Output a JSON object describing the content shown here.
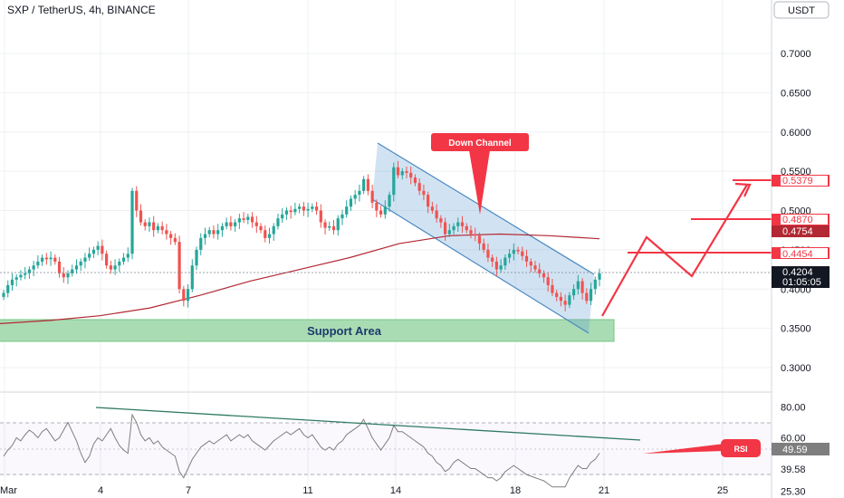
{
  "header": {
    "title": "SXP / TetherUS, 4h, BINANCE",
    "currency_button": "USDT"
  },
  "colors": {
    "up": "#26a69a",
    "down": "#ef5350",
    "ma": "#b22833",
    "channel": "#5b9bd5",
    "support": "#9fd8a8",
    "annotation": "#f23645",
    "rsi": "#7e7e7e",
    "trend": "#2f7a62"
  },
  "chart_data": [
    {
      "type": "candlestick",
      "title": "SXP / TetherUS, 4h, BINANCE",
      "ylim": [
        0.26,
        0.76
      ],
      "price_ticks": [
        "0.7000",
        "0.6500",
        "0.6000",
        "0.5500",
        "0.5000",
        "0.4500",
        "0.4000",
        "0.3500",
        "0.3000"
      ],
      "date_ticks": [
        "Mar",
        "4",
        "7",
        "11",
        "14",
        "18",
        "21",
        "25"
      ],
      "close_prices": [
        0.395,
        0.405,
        0.412,
        0.415,
        0.418,
        0.42,
        0.425,
        0.43,
        0.435,
        0.44,
        0.438,
        0.44,
        0.435,
        0.42,
        0.415,
        0.42,
        0.425,
        0.43,
        0.435,
        0.44,
        0.445,
        0.45,
        0.455,
        0.445,
        0.43,
        0.425,
        0.43,
        0.435,
        0.44,
        0.445,
        0.525,
        0.5,
        0.485,
        0.48,
        0.485,
        0.475,
        0.48,
        0.475,
        0.47,
        0.465,
        0.46,
        0.4,
        0.385,
        0.4,
        0.43,
        0.45,
        0.465,
        0.47,
        0.475,
        0.47,
        0.475,
        0.48,
        0.485,
        0.48,
        0.485,
        0.49,
        0.488,
        0.492,
        0.485,
        0.48,
        0.475,
        0.465,
        0.47,
        0.48,
        0.49,
        0.495,
        0.5,
        0.498,
        0.502,
        0.505,
        0.5,
        0.502,
        0.505,
        0.5,
        0.485,
        0.478,
        0.48,
        0.475,
        0.49,
        0.495,
        0.505,
        0.515,
        0.52,
        0.525,
        0.54,
        0.525,
        0.51,
        0.5,
        0.495,
        0.505,
        0.52,
        0.555,
        0.545,
        0.55,
        0.548,
        0.542,
        0.535,
        0.525,
        0.52,
        0.505,
        0.5,
        0.49,
        0.485,
        0.47,
        0.475,
        0.48,
        0.485,
        0.48,
        0.475,
        0.47,
        0.468,
        0.458,
        0.45,
        0.44,
        0.435,
        0.425,
        0.43,
        0.44,
        0.445,
        0.45,
        0.448,
        0.442,
        0.435,
        0.43,
        0.425,
        0.42,
        0.415,
        0.405,
        0.395,
        0.39,
        0.385,
        0.38,
        0.392,
        0.4,
        0.41,
        0.395,
        0.385,
        0.4,
        0.412,
        0.42
      ],
      "moving_average": {
        "values": [
          0.356,
          0.36,
          0.366,
          0.376,
          0.392,
          0.41,
          0.425,
          0.44,
          0.458,
          0.468,
          0.47,
          0.468,
          0.464
        ],
        "color": "#b22833"
      },
      "down_channel_label": "Down Channel",
      "support_label": "Support Area",
      "target_levels": [
        "0.5379",
        "0.4870",
        "0.4754",
        "0.4454"
      ],
      "current_price": "0.4204",
      "countdown": "01:05:05",
      "projected_path": [
        0.372,
        0.465,
        0.415,
        0.537
      ]
    },
    {
      "type": "line",
      "title": "RSI",
      "ylim": [
        22,
        88
      ],
      "rsi_ticks": [
        "80.00",
        "60.00",
        "39.58",
        "25.30"
      ],
      "current_value": "49.59",
      "values": [
        48,
        52,
        55,
        60,
        58,
        62,
        65,
        63,
        60,
        64,
        66,
        62,
        58,
        60,
        65,
        70,
        64,
        58,
        50,
        44,
        48,
        56,
        60,
        58,
        62,
        66,
        60,
        55,
        52,
        50,
        75,
        70,
        62,
        58,
        60,
        56,
        58,
        54,
        52,
        50,
        48,
        38,
        34,
        40,
        46,
        50,
        54,
        56,
        58,
        56,
        58,
        60,
        62,
        58,
        60,
        62,
        60,
        62,
        58,
        56,
        54,
        52,
        55,
        58,
        60,
        62,
        64,
        62,
        64,
        66,
        62,
        60,
        62,
        58,
        54,
        52,
        54,
        52,
        56,
        58,
        62,
        64,
        66,
        68,
        72,
        66,
        60,
        56,
        52,
        56,
        60,
        68,
        64,
        64,
        62,
        60,
        58,
        56,
        54,
        50,
        48,
        44,
        42,
        38,
        40,
        44,
        46,
        44,
        42,
        40,
        40,
        38,
        36,
        34,
        34,
        32,
        34,
        38,
        40,
        42,
        40,
        38,
        36,
        35,
        34,
        33,
        32,
        30,
        28,
        28,
        28,
        28,
        34,
        38,
        42,
        40,
        40,
        44,
        46,
        50
      ],
      "rsi_label": "RSI"
    }
  ]
}
